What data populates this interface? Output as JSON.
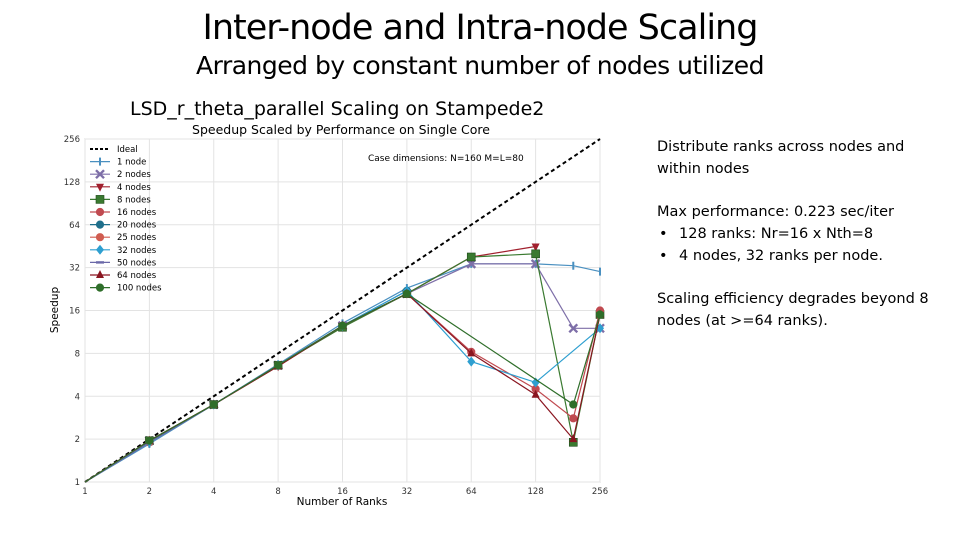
{
  "slide": {
    "title": "Inter-node and Intra-node Scaling",
    "subtitle": "Arranged by constant number of nodes utilized"
  },
  "notes": {
    "para1": "Distribute ranks across nodes and within nodes",
    "para2": "Max performance: 0.223 sec/iter",
    "bullets": [
      "128 ranks: Nr=16 x Nth=8",
      "4 nodes, 32 ranks per node."
    ],
    "para3": "Scaling efficiency degrades beyond 8 nodes (at >=64 ranks)."
  },
  "chart_data": {
    "type": "line",
    "title": "LSD_r_theta_parallel Scaling on Stampede2",
    "subtitle": "Speedup Scaled by Performance on Single Core",
    "annotation": "Case dimensions: N=160 M=L=80",
    "xlabel": "Number of Ranks",
    "ylabel": "Speedup",
    "x_scale": "log2",
    "y_scale": "log2",
    "xlim": [
      1,
      256
    ],
    "ylim": [
      1,
      256
    ],
    "x_ticks": [
      "1",
      "2",
      "4",
      "8",
      "16",
      "32",
      "64",
      "128",
      "256"
    ],
    "y_ticks": [
      "1",
      "2",
      "4",
      "8",
      "16",
      "32",
      "64",
      "128",
      "256"
    ],
    "grid": true,
    "legend_position": "top-left",
    "series": [
      {
        "name": "Ideal",
        "color": "#000000",
        "marker": "none",
        "dashed": true,
        "x": [
          1,
          256
        ],
        "y": [
          1,
          256
        ]
      },
      {
        "name": "1 node",
        "color": "#4a90c0",
        "marker": "tick",
        "x": [
          1,
          2,
          4,
          8,
          16,
          32,
          64,
          128,
          192,
          256
        ],
        "y": [
          1,
          1.85,
          3.5,
          6.7,
          13,
          23,
          34,
          34,
          33,
          30
        ]
      },
      {
        "name": "2 nodes",
        "color": "#7e6fa8",
        "marker": "x",
        "x": [
          1,
          2,
          4,
          8,
          16,
          32,
          64,
          128,
          192,
          256
        ],
        "y": [
          1,
          1.95,
          3.5,
          6.6,
          12.5,
          21,
          34,
          34,
          12,
          12
        ]
      },
      {
        "name": "4 nodes",
        "color": "#a1202e",
        "marker": "tri-down",
        "x": [
          1,
          2,
          4,
          8,
          16,
          32,
          64,
          128
        ],
        "y": [
          1,
          1.95,
          3.5,
          6.5,
          12.5,
          21,
          38,
          45
        ]
      },
      {
        "name": "8 nodes",
        "color": "#3a7a30",
        "marker": "square",
        "x": [
          1,
          2,
          4,
          8,
          16,
          32,
          64,
          128,
          192,
          256
        ],
        "y": [
          1,
          1.95,
          3.5,
          6.6,
          12.2,
          21,
          38,
          40,
          1.9,
          15
        ]
      },
      {
        "name": "16 nodes",
        "color": "#c04a50",
        "marker": "circle",
        "x": [
          1,
          2,
          4,
          8,
          16,
          32,
          64,
          128,
          192,
          256
        ],
        "y": [
          1,
          1.95,
          3.5,
          6.6,
          12.5,
          21,
          8.2,
          4.5,
          2.8,
          16
        ]
      },
      {
        "name": "20 nodes",
        "color": "#1f6f8b",
        "marker": "circle",
        "x": [
          1,
          2,
          4,
          8,
          16,
          32
        ],
        "y": [
          1,
          1.9,
          3.5,
          6.6,
          12.5,
          22
        ]
      },
      {
        "name": "25 nodes",
        "color": "#d05c50",
        "marker": "circle",
        "x": [
          1,
          2,
          4,
          8,
          16,
          32
        ],
        "y": [
          1,
          1.9,
          3.5,
          6.6,
          12.5,
          21
        ]
      },
      {
        "name": "32 nodes",
        "color": "#2e9fd0",
        "marker": "diamond",
        "x": [
          1,
          2,
          4,
          8,
          16,
          32,
          64,
          128,
          256
        ],
        "y": [
          1,
          1.9,
          3.5,
          6.6,
          12.5,
          22,
          7,
          5,
          12
        ]
      },
      {
        "name": "50 nodes",
        "color": "#6a68a8",
        "marker": "hline",
        "x": [
          1,
          2,
          4,
          8,
          16,
          32
        ],
        "y": [
          1,
          1.9,
          3.5,
          6.6,
          12.5,
          21
        ]
      },
      {
        "name": "64 nodes",
        "color": "#8a1520",
        "marker": "triangle",
        "x": [
          1,
          2,
          4,
          8,
          16,
          32,
          64,
          128,
          192,
          256
        ],
        "y": [
          1,
          1.95,
          3.5,
          6.5,
          12.5,
          21,
          8,
          4.1,
          2,
          15
        ]
      },
      {
        "name": "100 nodes",
        "color": "#2f6e2a",
        "marker": "circle",
        "x": [
          1,
          2,
          4,
          8,
          16,
          32,
          192,
          256
        ],
        "y": [
          1,
          1.95,
          3.5,
          6.6,
          12.5,
          21,
          3.5,
          15
        ]
      }
    ]
  }
}
